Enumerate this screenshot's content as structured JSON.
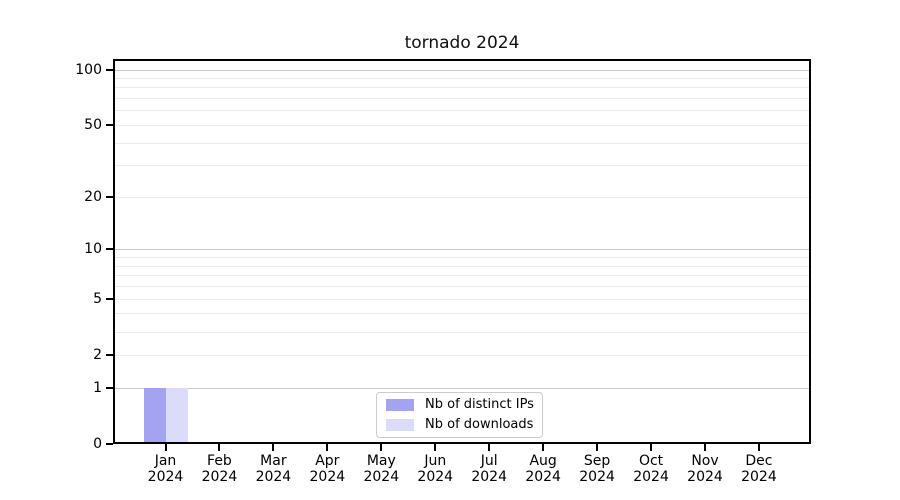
{
  "chart_data": {
    "type": "bar",
    "title": "tornado 2024",
    "categories": [
      "Jan",
      "Feb",
      "Mar",
      "Apr",
      "May",
      "Jun",
      "Jul",
      "Aug",
      "Sep",
      "Oct",
      "Nov",
      "Dec"
    ],
    "x_year_label": "2024",
    "series": [
      {
        "name": "Nb of distinct IPs",
        "color": "#a3a3f1",
        "values": [
          1,
          0,
          0,
          0,
          0,
          0,
          0,
          0,
          0,
          0,
          0,
          0
        ]
      },
      {
        "name": "Nb of downloads",
        "color": "#dbdbfa",
        "values": [
          1,
          0,
          0,
          0,
          0,
          0,
          0,
          0,
          0,
          0,
          0,
          0
        ]
      }
    ],
    "y_axis": {
      "scale": "log10(value+1)",
      "tick_values": [
        0,
        1,
        2,
        5,
        10,
        20,
        50,
        100
      ],
      "major_gridlines": [
        1,
        10,
        100
      ],
      "minor_gridlines": [
        2,
        3,
        4,
        5,
        6,
        7,
        8,
        9,
        20,
        30,
        40,
        50,
        60,
        70,
        80,
        90
      ],
      "top_value": 114
    },
    "legend_position": "lower center",
    "grid": "horizontal"
  },
  "colors": {
    "distinct_ips_bar": "#a3a3f1",
    "downloads_bar": "#dbdbfa",
    "major_grid": "#c9c9c9",
    "minor_grid": "#eaeaea",
    "axis": "#000000"
  }
}
